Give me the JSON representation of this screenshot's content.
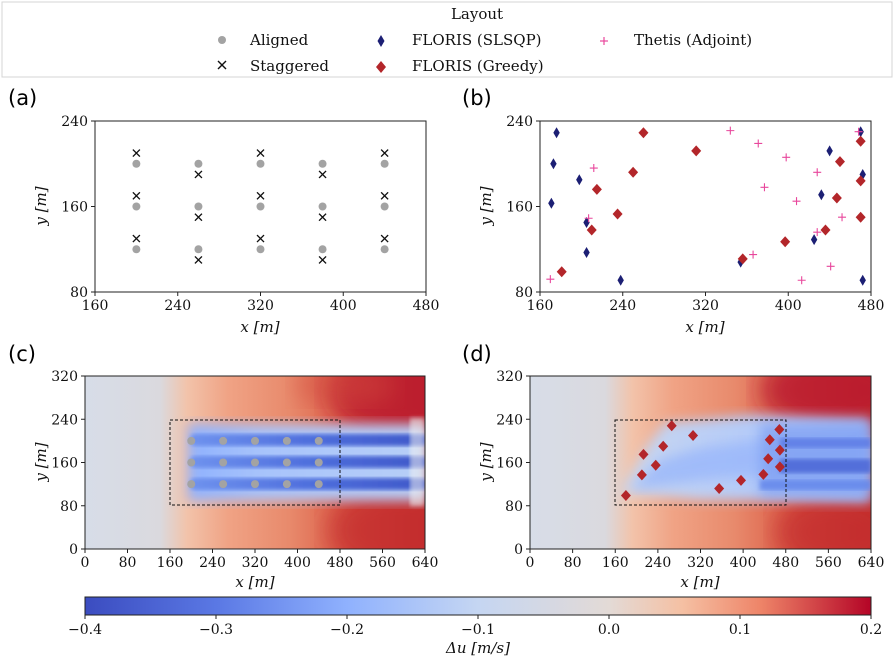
{
  "legend": {
    "title": "Layout",
    "items": [
      {
        "label": "Aligned",
        "marker": "circle",
        "color": "#a3a3a3"
      },
      {
        "label": "Staggered",
        "marker": "x",
        "color": "#111111"
      },
      {
        "label": "FLORIS (SLSQP)",
        "marker": "thin-diamond",
        "color": "#1c1f74"
      },
      {
        "label": "FLORIS (Greedy)",
        "marker": "diamond",
        "color": "#b3262a"
      },
      {
        "label": "Thetis (Adjoint)",
        "marker": "plus",
        "color": "#e8479c"
      }
    ]
  },
  "panels": {
    "a": {
      "label": "(a)"
    },
    "b": {
      "label": "(b)"
    },
    "c": {
      "label": "(c)"
    },
    "d": {
      "label": "(d)"
    }
  },
  "axis_text": {
    "xlabel": "x [m]",
    "ylabel": "y [m]",
    "top_xticks": [
      "160",
      "240",
      "320",
      "400",
      "480"
    ],
    "top_yticks": [
      "80",
      "160",
      "240"
    ],
    "bottom_xticks": [
      "0",
      "80",
      "160",
      "240",
      "320",
      "400",
      "480",
      "560",
      "640"
    ],
    "bottom_yticks": [
      "0",
      "80",
      "160",
      "240",
      "320"
    ]
  },
  "colorbar": {
    "label": "Δu [m/s]",
    "ticks": [
      "−0.4",
      "−0.3",
      "−0.2",
      "−0.1",
      "0.0",
      "0.1",
      "0.2"
    ],
    "range": [
      -0.4,
      0.2
    ],
    "colormap": [
      "#3b4cc0",
      "#7396f5",
      "#b0cbfc",
      "#dddcdc",
      "#f5b193",
      "#e16852",
      "#b40426"
    ]
  },
  "chart_data": [
    {
      "panel": "a",
      "type": "scatter",
      "xlabel": "x [m]",
      "ylabel": "y [m]",
      "xlim": [
        160,
        480
      ],
      "ylim": [
        80,
        240
      ],
      "series": [
        {
          "name": "Aligned",
          "marker": "circle",
          "points": [
            [
              200,
              200
            ],
            [
              200,
              160
            ],
            [
              200,
              120
            ],
            [
              260,
              200
            ],
            [
              260,
              160
            ],
            [
              260,
              120
            ],
            [
              320,
              200
            ],
            [
              320,
              160
            ],
            [
              320,
              120
            ],
            [
              380,
              200
            ],
            [
              380,
              160
            ],
            [
              380,
              120
            ],
            [
              440,
              200
            ],
            [
              440,
              160
            ],
            [
              440,
              120
            ]
          ]
        },
        {
          "name": "Staggered",
          "marker": "x",
          "points": [
            [
              200,
              210
            ],
            [
              200,
              170
            ],
            [
              200,
              130
            ],
            [
              260,
              190
            ],
            [
              260,
              150
            ],
            [
              260,
              110
            ],
            [
              320,
              210
            ],
            [
              320,
              170
            ],
            [
              320,
              130
            ],
            [
              380,
              190
            ],
            [
              380,
              150
            ],
            [
              380,
              110
            ],
            [
              440,
              210
            ],
            [
              440,
              170
            ],
            [
              440,
              130
            ]
          ]
        }
      ]
    },
    {
      "panel": "b",
      "type": "scatter",
      "xlabel": "x [m]",
      "ylabel": "y [m]",
      "xlim": [
        160,
        480
      ],
      "ylim": [
        80,
        240
      ],
      "series": [
        {
          "name": "FLORIS (SLSQP)",
          "marker": "thin-diamond",
          "points": [
            [
              171,
              163
            ],
            [
              173,
              200
            ],
            [
              176,
              229
            ],
            [
              198,
              185
            ],
            [
              205,
              117
            ],
            [
              205,
              145
            ],
            [
              238,
              91
            ],
            [
              354,
              108
            ],
            [
              425,
              129
            ],
            [
              432,
              171
            ],
            [
              440,
              212
            ],
            [
              470,
              230
            ],
            [
              472,
              190
            ],
            [
              472,
              91
            ]
          ]
        },
        {
          "name": "FLORIS (Greedy)",
          "marker": "diamond",
          "points": [
            [
              181,
              99
            ],
            [
              210,
              138
            ],
            [
              215,
              176
            ],
            [
              235,
              153
            ],
            [
              250,
              192
            ],
            [
              260,
              229
            ],
            [
              311,
              212
            ],
            [
              356,
              111
            ],
            [
              397,
              127
            ],
            [
              436,
              138
            ],
            [
              447,
              168
            ],
            [
              450,
              202
            ],
            [
              470,
              221
            ],
            [
              470,
              184
            ],
            [
              470,
              150
            ]
          ]
        },
        {
          "name": "Thetis (Adjoint)",
          "marker": "plus",
          "points": [
            [
              170,
              92
            ],
            [
              207,
              149
            ],
            [
              212,
              196
            ],
            [
              344,
              231
            ],
            [
              366,
              115
            ],
            [
              371,
              219
            ],
            [
              377,
              178
            ],
            [
              398,
              206
            ],
            [
              408,
              165
            ],
            [
              413,
              91
            ],
            [
              428,
              136
            ],
            [
              428,
              192
            ],
            [
              441,
              104
            ],
            [
              452,
              150
            ],
            [
              468,
              230
            ]
          ]
        }
      ]
    },
    {
      "panel": "c",
      "type": "heatmap",
      "xlabel": "x [m]",
      "ylabel": "y [m]",
      "xlim": [
        0,
        640
      ],
      "ylim": [
        0,
        320
      ],
      "farm_box": {
        "x": [
          160,
          480
        ],
        "y": [
          80,
          240
        ]
      },
      "turbines": [
        [
          200,
          200
        ],
        [
          200,
          160
        ],
        [
          200,
          120
        ],
        [
          260,
          200
        ],
        [
          260,
          160
        ],
        [
          260,
          120
        ],
        [
          320,
          200
        ],
        [
          320,
          160
        ],
        [
          320,
          120
        ],
        [
          380,
          200
        ],
        [
          380,
          160
        ],
        [
          380,
          120
        ],
        [
          440,
          200
        ],
        [
          440,
          160
        ],
        [
          440,
          120
        ]
      ]
    },
    {
      "panel": "d",
      "type": "heatmap",
      "xlabel": "x [m]",
      "ylabel": "y [m]",
      "xlim": [
        0,
        640
      ],
      "ylim": [
        0,
        320
      ],
      "farm_box": {
        "x": [
          160,
          480
        ],
        "y": [
          80,
          240
        ]
      },
      "turbines": [
        [
          180,
          99
        ],
        [
          210,
          137
        ],
        [
          213,
          175
        ],
        [
          236,
          155
        ],
        [
          250,
          190
        ],
        [
          266,
          228
        ],
        [
          306,
          210
        ],
        [
          355,
          112
        ],
        [
          396,
          127
        ],
        [
          438,
          138
        ],
        [
          447,
          167
        ],
        [
          450,
          202
        ],
        [
          468,
          221
        ],
        [
          469,
          183
        ],
        [
          469,
          152
        ]
      ]
    }
  ]
}
